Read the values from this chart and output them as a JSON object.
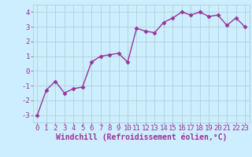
{
  "x": [
    0,
    1,
    2,
    3,
    4,
    5,
    6,
    7,
    8,
    9,
    10,
    11,
    12,
    13,
    14,
    15,
    16,
    17,
    18,
    19,
    20,
    21,
    22,
    23
  ],
  "y": [
    -3.0,
    -1.3,
    -0.7,
    -1.5,
    -1.2,
    -1.1,
    0.6,
    1.0,
    1.1,
    1.2,
    0.6,
    2.9,
    2.7,
    2.6,
    3.3,
    3.6,
    4.0,
    3.8,
    4.0,
    3.7,
    3.8,
    3.1,
    3.6,
    3.0
  ],
  "line_color": "#993399",
  "marker": "D",
  "marker_size": 2.5,
  "bg_color": "#cceeff",
  "grid_color": "#aacccc",
  "xlabel": "Windchill (Refroidissement éolien,°C)",
  "xlabel_color": "#993399",
  "tick_color": "#993399",
  "ylim": [
    -3.5,
    4.5
  ],
  "xlim": [
    -0.5,
    23.5
  ],
  "yticks": [
    -3,
    -2,
    -1,
    0,
    1,
    2,
    3,
    4
  ],
  "xticks": [
    0,
    1,
    2,
    3,
    4,
    5,
    6,
    7,
    8,
    9,
    10,
    11,
    12,
    13,
    14,
    15,
    16,
    17,
    18,
    19,
    20,
    21,
    22,
    23
  ],
  "tick_fontsize": 6.5,
  "xlabel_fontsize": 7,
  "linewidth": 1.0
}
